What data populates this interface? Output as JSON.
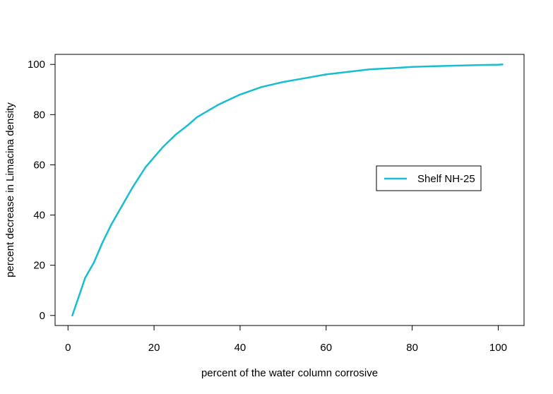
{
  "chart_data": {
    "type": "line",
    "title": "",
    "xlabel": "percent of the water column corrosive",
    "ylabel": "percent decrease in Limacina density",
    "xlim": [
      -3,
      106
    ],
    "ylim": [
      -4,
      104
    ],
    "x_ticks": [
      0,
      20,
      40,
      60,
      80,
      100
    ],
    "y_ticks": [
      0,
      20,
      40,
      60,
      80,
      100
    ],
    "grid": false,
    "legend_position": "right",
    "series": [
      {
        "name": "Shelf NH-25",
        "color": "#17becf",
        "x": [
          1,
          2,
          3,
          4,
          6,
          8,
          10,
          12,
          15,
          18,
          20,
          22,
          25,
          28,
          30,
          35,
          40,
          45,
          50,
          55,
          60,
          65,
          70,
          75,
          80,
          85,
          90,
          95,
          100,
          101
        ],
        "y": [
          0,
          5,
          10,
          15,
          21,
          29,
          36,
          42,
          51,
          59,
          63,
          67,
          72,
          76,
          79,
          84,
          88,
          91,
          93,
          94.5,
          96,
          97,
          98,
          98.5,
          99,
          99.3,
          99.5,
          99.7,
          99.9,
          100
        ]
      }
    ]
  }
}
